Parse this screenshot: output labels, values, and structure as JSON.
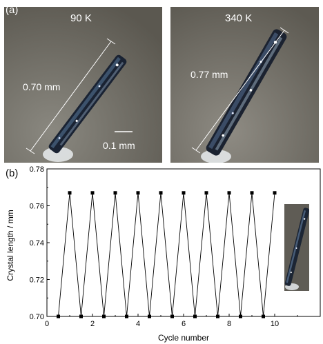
{
  "panel_a": {
    "label": "(a)",
    "left_photo": {
      "temperature": "90 K",
      "length": "0.70 mm",
      "scale_bar": "0.1 mm"
    },
    "right_photo": {
      "temperature": "340 K",
      "length": "0.77 mm"
    }
  },
  "panel_b": {
    "label": "(b)"
  },
  "colors": {
    "line": "#000000",
    "marker": "#000000",
    "photo_bg": "#6e6a62",
    "scale_text": "#ffffff"
  },
  "chart_data": {
    "type": "line",
    "xlabel": "Cycle number",
    "ylabel": "Crystal length / mm",
    "xlim": [
      0,
      12
    ],
    "ylim": [
      0.7,
      0.78
    ],
    "xticks": [
      "0",
      "2",
      "4",
      "6",
      "8",
      "10"
    ],
    "xtick_values": [
      0,
      2,
      4,
      6,
      8,
      10
    ],
    "yticks": [
      "0.70",
      "0.72",
      "0.74",
      "0.76",
      "0.78"
    ],
    "ytick_values": [
      0.7,
      0.72,
      0.74,
      0.76,
      0.78
    ],
    "grid": false,
    "marker": "square",
    "series": [
      {
        "x": [
          0.5,
          1,
          1.5,
          2,
          2.5,
          3,
          3.5,
          4,
          4.5,
          5,
          5.5,
          6,
          6.5,
          7,
          7.5,
          8,
          8.5,
          9,
          9.5,
          10
        ],
        "y": [
          0.7,
          0.767,
          0.7,
          0.767,
          0.7,
          0.767,
          0.7,
          0.767,
          0.7,
          0.767,
          0.7,
          0.767,
          0.7,
          0.767,
          0.7,
          0.767,
          0.7,
          0.767,
          0.7,
          0.767
        ]
      }
    ]
  }
}
